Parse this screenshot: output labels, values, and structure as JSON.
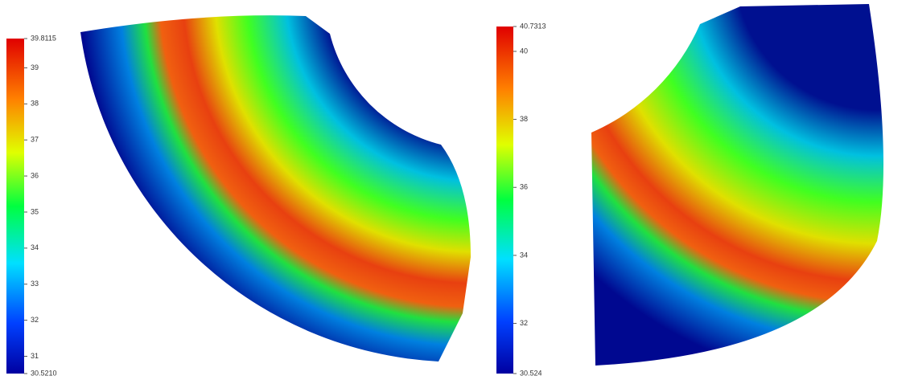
{
  "panels": [
    {
      "colorbar": {
        "min": {
          "value": 30.521,
          "label": "30.5210"
        },
        "max": 39.8115,
        "ticks": [
          39,
          38,
          37,
          36,
          35,
          34,
          33,
          32,
          31
        ]
      }
    },
    {
      "colorbar": {
        "min": 30.524,
        "max": 40.7313,
        "ticks": [
          40,
          38,
          36,
          34,
          32
        ]
      }
    }
  ]
}
